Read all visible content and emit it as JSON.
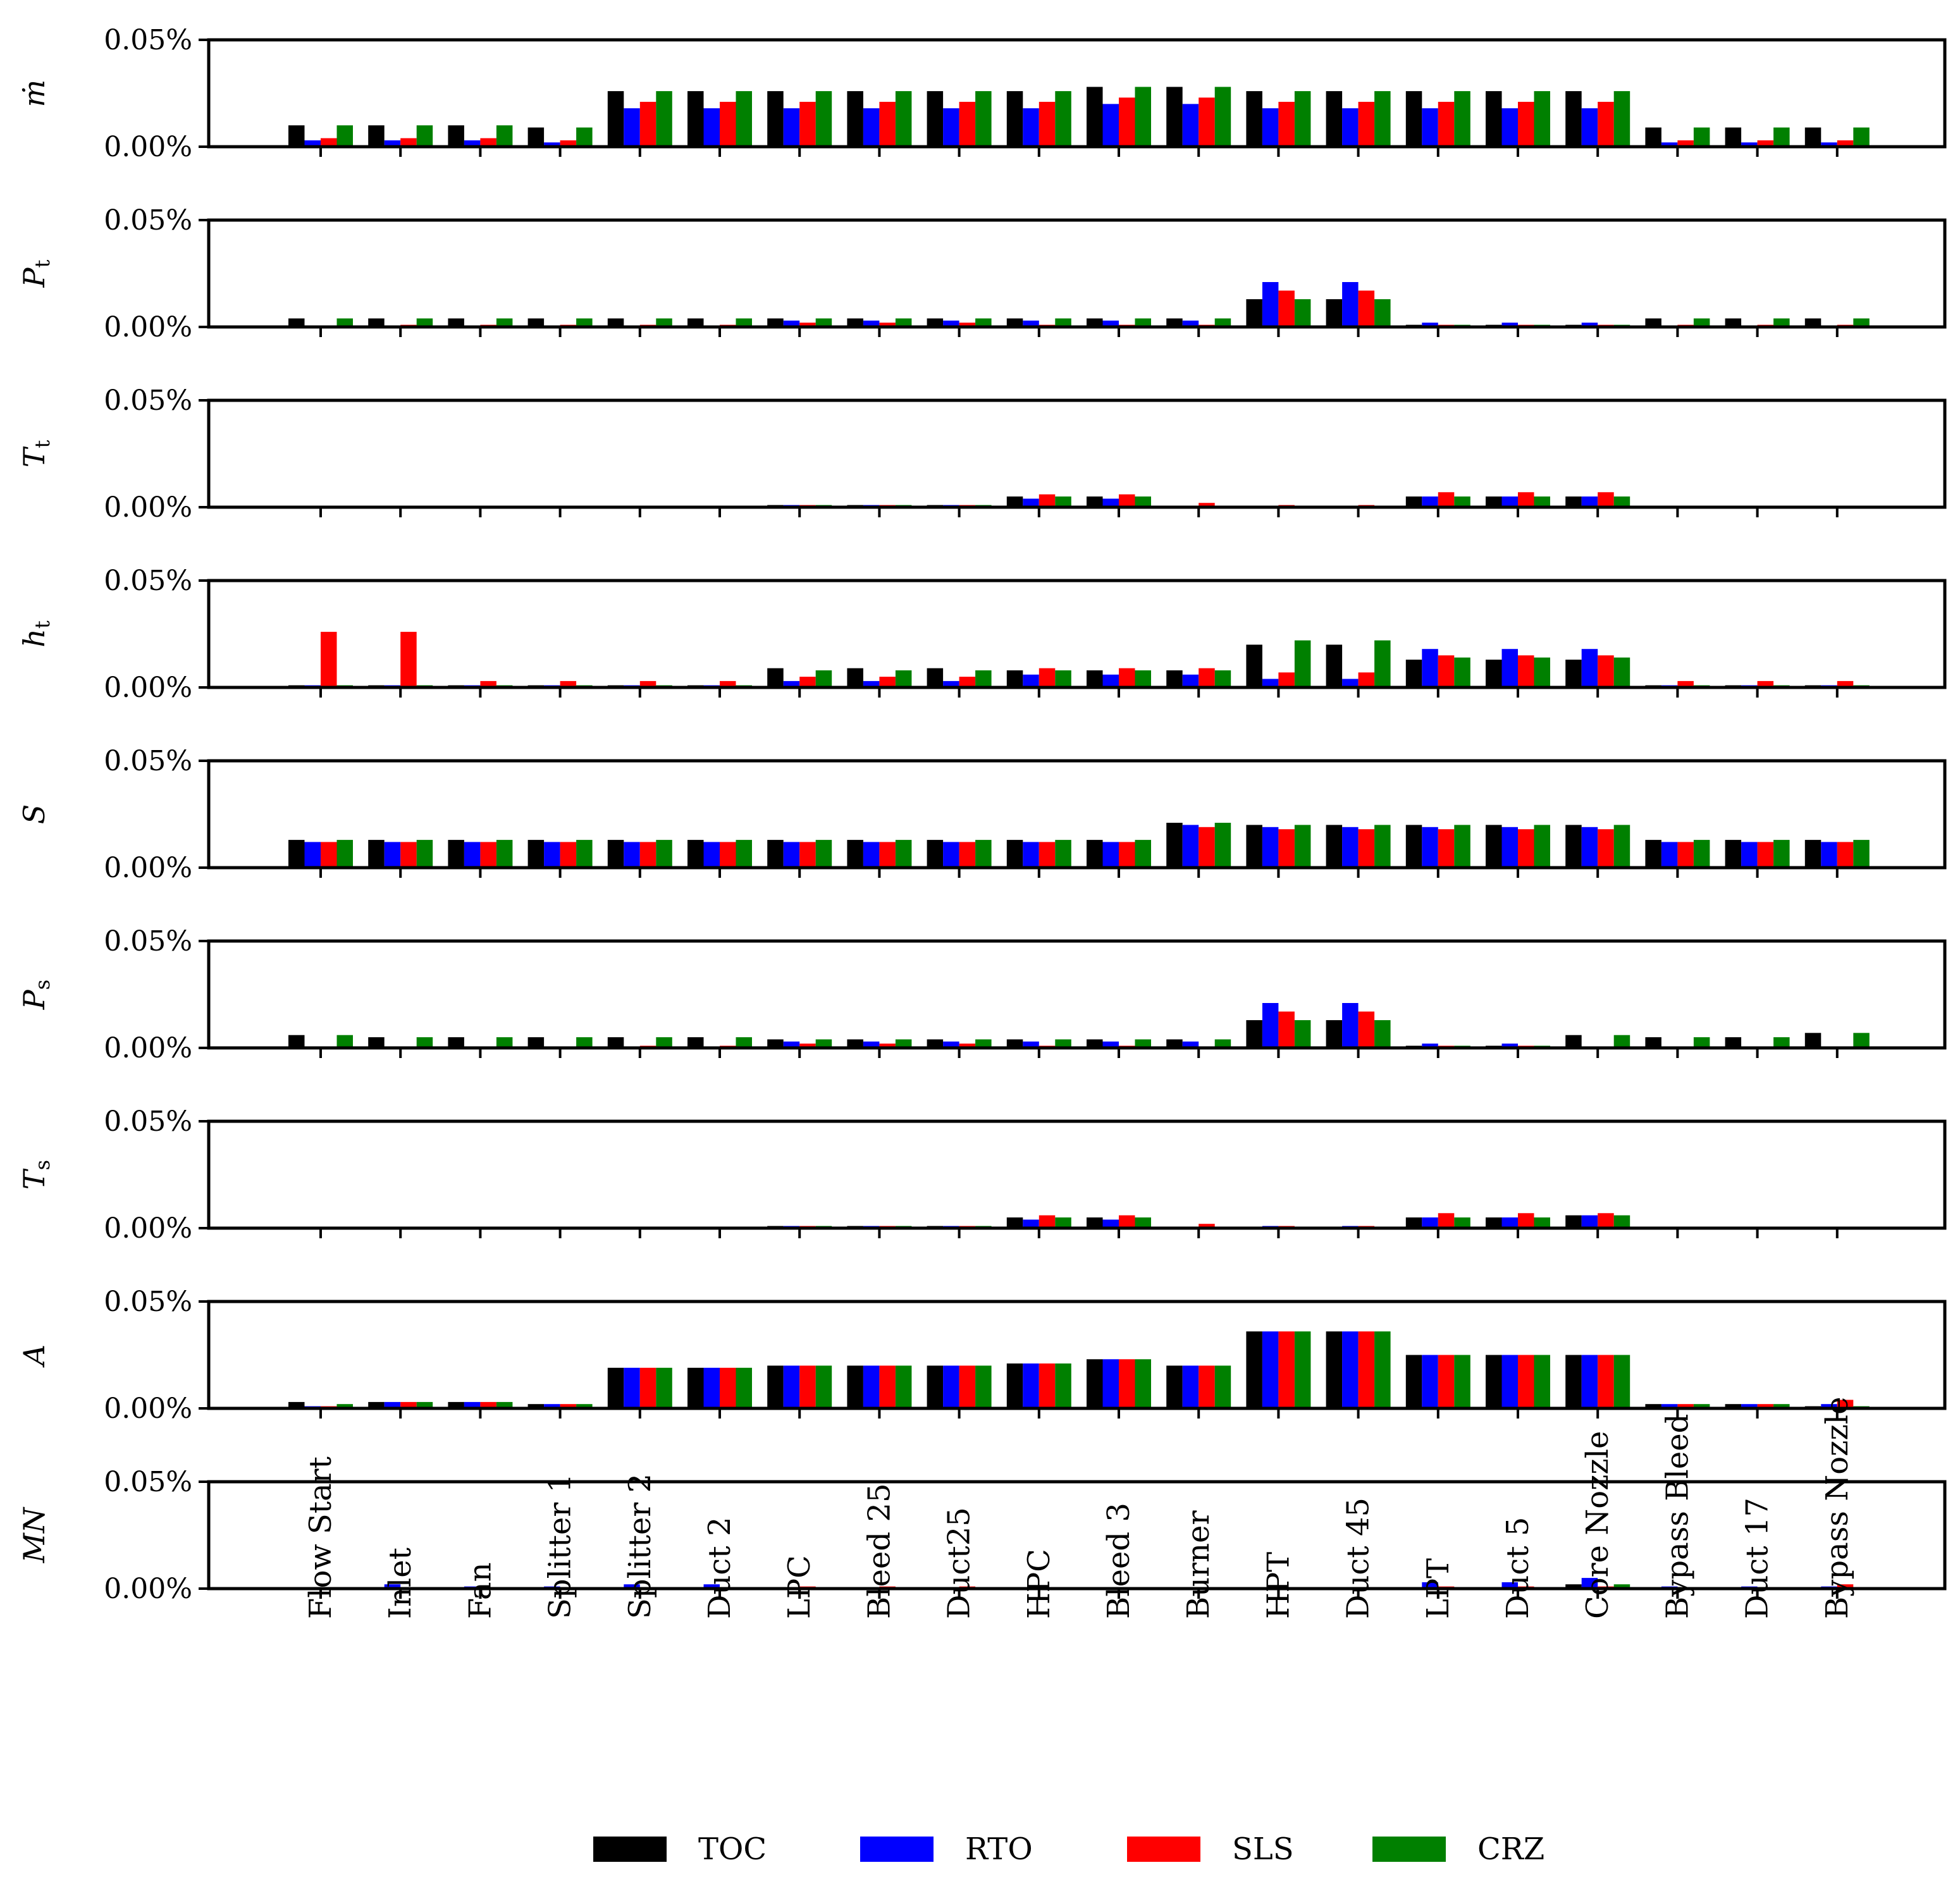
{
  "chart_data": {
    "type": "bar",
    "categories": [
      "Flow Start",
      "Inlet",
      "Fan",
      "Splitter 1",
      "Splitter 2",
      "Duct 2",
      "LPC",
      "Bleed 25",
      "Duct25",
      "HPC",
      "Bleed 3",
      "Burner",
      "HPT",
      "Duct 45",
      "LPT",
      "Duct 5",
      "Core Nozzle",
      "Bypass Bleed",
      "Duct 17",
      "Bypass Nozzle"
    ],
    "legend": [
      {
        "name": "TOC",
        "color": "#000000"
      },
      {
        "name": "RTO",
        "color": "#0000ff"
      },
      {
        "name": "SLS",
        "color": "#ff0000"
      },
      {
        "name": "CRZ",
        "color": "#008000"
      }
    ],
    "ylim": [
      0,
      0.05
    ],
    "yticks": [
      "0.00%",
      "0.05%"
    ],
    "panels": [
      {
        "ylabel": "ṁ",
        "sub": "",
        "series": {
          "TOC": [
            0.01,
            0.01,
            0.01,
            0.009,
            0.026,
            0.026,
            0.026,
            0.026,
            0.026,
            0.026,
            0.028,
            0.028,
            0.026,
            0.026,
            0.026,
            0.026,
            0.026,
            0.009,
            0.009,
            0.009
          ],
          "RTO": [
            0.003,
            0.003,
            0.003,
            0.002,
            0.018,
            0.018,
            0.018,
            0.018,
            0.018,
            0.018,
            0.02,
            0.02,
            0.018,
            0.018,
            0.018,
            0.018,
            0.018,
            0.002,
            0.002,
            0.002
          ],
          "SLS": [
            0.004,
            0.004,
            0.004,
            0.003,
            0.021,
            0.021,
            0.021,
            0.021,
            0.021,
            0.021,
            0.023,
            0.023,
            0.021,
            0.021,
            0.021,
            0.021,
            0.021,
            0.003,
            0.003,
            0.003
          ],
          "CRZ": [
            0.01,
            0.01,
            0.01,
            0.009,
            0.026,
            0.026,
            0.026,
            0.026,
            0.026,
            0.026,
            0.028,
            0.028,
            0.026,
            0.026,
            0.026,
            0.026,
            0.026,
            0.009,
            0.009,
            0.009
          ]
        }
      },
      {
        "ylabel": "P",
        "sub": "t",
        "series": {
          "TOC": [
            0.004,
            0.004,
            0.004,
            0.004,
            0.004,
            0.004,
            0.004,
            0.004,
            0.004,
            0.004,
            0.004,
            0.004,
            0.013,
            0.013,
            0.001,
            0.001,
            0.001,
            0.004,
            0.004,
            0.004
          ],
          "RTO": [
            0.0,
            0.0,
            0.0,
            0.0,
            0.0,
            0.0,
            0.003,
            0.003,
            0.003,
            0.003,
            0.003,
            0.003,
            0.021,
            0.021,
            0.002,
            0.002,
            0.002,
            0.0,
            0.0,
            0.0
          ],
          "SLS": [
            0.0,
            0.001,
            0.001,
            0.001,
            0.001,
            0.001,
            0.002,
            0.002,
            0.002,
            0.001,
            0.001,
            0.001,
            0.017,
            0.017,
            0.001,
            0.001,
            0.001,
            0.001,
            0.001,
            0.001
          ],
          "CRZ": [
            0.004,
            0.004,
            0.004,
            0.004,
            0.004,
            0.004,
            0.004,
            0.004,
            0.004,
            0.004,
            0.004,
            0.004,
            0.013,
            0.013,
            0.001,
            0.001,
            0.001,
            0.004,
            0.004,
            0.004
          ]
        }
      },
      {
        "ylabel": "T",
        "sub": "t",
        "series": {
          "TOC": [
            0.0,
            0.0,
            0.0,
            0.0,
            0.0,
            0.0,
            0.001,
            0.001,
            0.001,
            0.005,
            0.005,
            0.0,
            0.0,
            0.0,
            0.005,
            0.005,
            0.005,
            0.0,
            0.0,
            0.0
          ],
          "RTO": [
            0.0,
            0.0,
            0.0,
            0.0,
            0.0,
            0.0,
            0.001,
            0.001,
            0.001,
            0.004,
            0.004,
            0.0,
            0.0,
            0.0,
            0.005,
            0.005,
            0.005,
            0.0,
            0.0,
            0.0
          ],
          "SLS": [
            0.0,
            0.0,
            0.0,
            0.0,
            0.0,
            0.0,
            0.001,
            0.001,
            0.001,
            0.006,
            0.006,
            0.002,
            0.001,
            0.001,
            0.007,
            0.007,
            0.007,
            0.0,
            0.0,
            0.0
          ],
          "CRZ": [
            0.0,
            0.0,
            0.0,
            0.0,
            0.0,
            0.0,
            0.001,
            0.001,
            0.001,
            0.005,
            0.005,
            0.0,
            0.0,
            0.0,
            0.005,
            0.005,
            0.005,
            0.0,
            0.0,
            0.0
          ]
        }
      },
      {
        "ylabel": "h",
        "sub": "t",
        "series": {
          "TOC": [
            0.001,
            0.001,
            0.001,
            0.001,
            0.001,
            0.001,
            0.009,
            0.009,
            0.009,
            0.008,
            0.008,
            0.008,
            0.02,
            0.02,
            0.013,
            0.013,
            0.013,
            0.001,
            0.001,
            0.001
          ],
          "RTO": [
            0.001,
            0.001,
            0.001,
            0.001,
            0.001,
            0.001,
            0.003,
            0.003,
            0.003,
            0.006,
            0.006,
            0.006,
            0.004,
            0.004,
            0.018,
            0.018,
            0.018,
            0.001,
            0.001,
            0.001
          ],
          "SLS": [
            0.026,
            0.026,
            0.003,
            0.003,
            0.003,
            0.003,
            0.005,
            0.005,
            0.005,
            0.009,
            0.009,
            0.009,
            0.007,
            0.007,
            0.015,
            0.015,
            0.015,
            0.003,
            0.003,
            0.003
          ],
          "CRZ": [
            0.001,
            0.001,
            0.001,
            0.001,
            0.001,
            0.001,
            0.008,
            0.008,
            0.008,
            0.008,
            0.008,
            0.008,
            0.022,
            0.022,
            0.014,
            0.014,
            0.014,
            0.001,
            0.001,
            0.001
          ]
        }
      },
      {
        "ylabel": "S",
        "sub": "",
        "series": {
          "TOC": [
            0.013,
            0.013,
            0.013,
            0.013,
            0.013,
            0.013,
            0.013,
            0.013,
            0.013,
            0.013,
            0.013,
            0.021,
            0.02,
            0.02,
            0.02,
            0.02,
            0.02,
            0.013,
            0.013,
            0.013
          ],
          "RTO": [
            0.012,
            0.012,
            0.012,
            0.012,
            0.012,
            0.012,
            0.012,
            0.012,
            0.012,
            0.012,
            0.012,
            0.02,
            0.019,
            0.019,
            0.019,
            0.019,
            0.019,
            0.012,
            0.012,
            0.012
          ],
          "SLS": [
            0.012,
            0.012,
            0.012,
            0.012,
            0.012,
            0.012,
            0.012,
            0.012,
            0.012,
            0.012,
            0.012,
            0.019,
            0.018,
            0.018,
            0.018,
            0.018,
            0.018,
            0.012,
            0.012,
            0.012
          ],
          "CRZ": [
            0.013,
            0.013,
            0.013,
            0.013,
            0.013,
            0.013,
            0.013,
            0.013,
            0.013,
            0.013,
            0.013,
            0.021,
            0.02,
            0.02,
            0.02,
            0.02,
            0.02,
            0.013,
            0.013,
            0.013
          ]
        }
      },
      {
        "ylabel": "P",
        "sub": "s",
        "series": {
          "TOC": [
            0.006,
            0.005,
            0.005,
            0.005,
            0.005,
            0.005,
            0.004,
            0.004,
            0.004,
            0.004,
            0.004,
            0.004,
            0.013,
            0.013,
            0.001,
            0.001,
            0.006,
            0.005,
            0.005,
            0.007
          ],
          "RTO": [
            0.0,
            0.0,
            0.0,
            0.0,
            0.0,
            0.0,
            0.003,
            0.003,
            0.003,
            0.003,
            0.003,
            0.003,
            0.021,
            0.021,
            0.002,
            0.002,
            0.0,
            0.0,
            0.0,
            0.0
          ],
          "SLS": [
            0.0,
            0.0,
            0.0,
            0.0,
            0.001,
            0.001,
            0.002,
            0.002,
            0.002,
            0.001,
            0.001,
            0.0,
            0.017,
            0.017,
            0.001,
            0.001,
            0.0,
            0.0,
            0.0,
            0.0
          ],
          "CRZ": [
            0.006,
            0.005,
            0.005,
            0.005,
            0.005,
            0.005,
            0.004,
            0.004,
            0.004,
            0.004,
            0.004,
            0.004,
            0.013,
            0.013,
            0.001,
            0.001,
            0.006,
            0.005,
            0.005,
            0.007
          ]
        }
      },
      {
        "ylabel": "T",
        "sub": "s",
        "series": {
          "TOC": [
            0.0,
            0.0,
            0.0,
            0.0,
            0.0,
            0.0,
            0.001,
            0.001,
            0.001,
            0.005,
            0.005,
            0.0,
            0.0,
            0.0,
            0.005,
            0.005,
            0.006,
            0.0,
            0.0,
            0.0
          ],
          "RTO": [
            0.0,
            0.0,
            0.0,
            0.0,
            0.0,
            0.0,
            0.001,
            0.001,
            0.001,
            0.004,
            0.004,
            0.0,
            0.001,
            0.001,
            0.005,
            0.005,
            0.006,
            0.0,
            0.0,
            0.0
          ],
          "SLS": [
            0.0,
            0.0,
            0.0,
            0.0,
            0.0,
            0.0,
            0.001,
            0.001,
            0.001,
            0.006,
            0.006,
            0.002,
            0.001,
            0.001,
            0.007,
            0.007,
            0.007,
            0.0,
            0.0,
            0.0
          ],
          "CRZ": [
            0.0,
            0.0,
            0.0,
            0.0,
            0.0,
            0.0,
            0.001,
            0.001,
            0.001,
            0.005,
            0.005,
            0.0,
            0.0,
            0.0,
            0.005,
            0.005,
            0.006,
            0.0,
            0.0,
            0.0
          ]
        }
      },
      {
        "ylabel": "A",
        "sub": "",
        "series": {
          "TOC": [
            0.003,
            0.003,
            0.003,
            0.002,
            0.019,
            0.019,
            0.02,
            0.02,
            0.02,
            0.021,
            0.023,
            0.02,
            0.036,
            0.036,
            0.025,
            0.025,
            0.025,
            0.002,
            0.002,
            0.001
          ],
          "RTO": [
            0.001,
            0.003,
            0.003,
            0.002,
            0.019,
            0.019,
            0.02,
            0.02,
            0.02,
            0.021,
            0.023,
            0.02,
            0.036,
            0.036,
            0.025,
            0.025,
            0.025,
            0.002,
            0.002,
            0.002
          ],
          "SLS": [
            0.001,
            0.003,
            0.003,
            0.002,
            0.019,
            0.019,
            0.02,
            0.02,
            0.02,
            0.021,
            0.023,
            0.02,
            0.036,
            0.036,
            0.025,
            0.025,
            0.025,
            0.002,
            0.002,
            0.004
          ],
          "CRZ": [
            0.002,
            0.003,
            0.003,
            0.002,
            0.019,
            0.019,
            0.02,
            0.02,
            0.02,
            0.021,
            0.023,
            0.02,
            0.036,
            0.036,
            0.025,
            0.025,
            0.025,
            0.002,
            0.002,
            0.001
          ]
        }
      },
      {
        "ylabel": "MN",
        "sub": "",
        "series": {
          "TOC": [
            0.0,
            0.0,
            0.0,
            0.0,
            0.0,
            0.0,
            0.0,
            0.0,
            0.0,
            0.0,
            0.0,
            0.0,
            0.0,
            0.0,
            0.0,
            0.0,
            0.002,
            0.0,
            0.0,
            0.0
          ],
          "RTO": [
            0.0,
            0.002,
            0.001,
            0.001,
            0.002,
            0.002,
            0.0,
            0.0,
            0.0,
            0.0,
            0.0,
            0.0,
            0.0,
            0.0,
            0.003,
            0.003,
            0.005,
            0.001,
            0.001,
            0.001
          ],
          "SLS": [
            0.0,
            0.0,
            0.0,
            0.0,
            0.0,
            0.0,
            0.001,
            0.001,
            0.001,
            0.0,
            0.0,
            0.0,
            0.0,
            0.0,
            0.001,
            0.001,
            0.001,
            0.0,
            0.0,
            0.002
          ],
          "CRZ": [
            0.0,
            0.0,
            0.0,
            0.0,
            0.0,
            0.0,
            0.0,
            0.0,
            0.0,
            0.0,
            0.0,
            0.0,
            0.0,
            0.0,
            0.0,
            0.0,
            0.002,
            0.0,
            0.0,
            0.0
          ]
        }
      }
    ]
  }
}
